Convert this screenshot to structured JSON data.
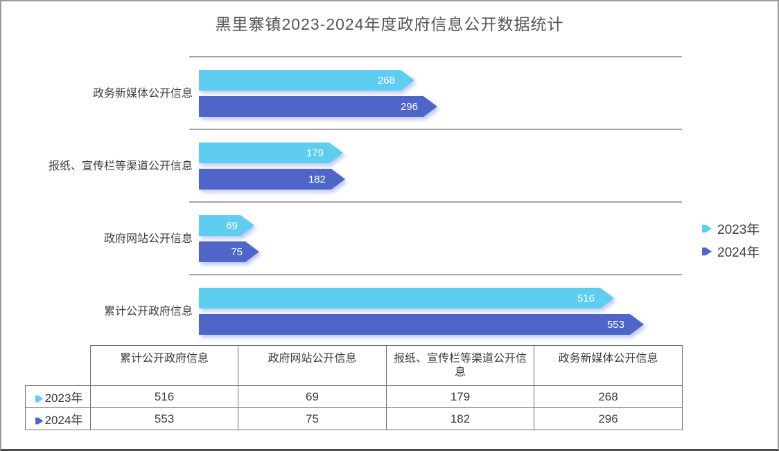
{
  "title": "黑里寨镇2023-2024年度政府信息公开数据统计",
  "colors": {
    "series_2023": "#5FCDF0",
    "series_2024": "#4F66C8",
    "bar_label_text": "#ffffff",
    "gridline": "#a5a5a5",
    "table_border": "#6f6f6f",
    "title_text": "#565656"
  },
  "chart_data": {
    "type": "bar",
    "orientation": "horizontal",
    "categories_top_to_bottom": [
      "政务新媒体公开信息",
      "报纸、宣传栏等渠道公开信息",
      "政府网站公开信息",
      "累计公开政府信息"
    ],
    "series": [
      {
        "name": "2023年",
        "color": "#5FCDF0",
        "values": [
          268,
          179,
          69,
          516
        ]
      },
      {
        "name": "2024年",
        "color": "#4F66C8",
        "values": [
          296,
          182,
          75,
          553
        ]
      }
    ],
    "xlim": [
      0,
      600
    ],
    "grid": "category-separators",
    "legend_position": "right",
    "bar_labels": "inside-end"
  },
  "legend": {
    "items": [
      {
        "label": "2023年",
        "color": "#5FCDF0",
        "marker": "arrow-right-icon"
      },
      {
        "label": "2024年",
        "color": "#4F66C8",
        "marker": "arrow-right-icon"
      }
    ]
  },
  "table": {
    "columns": [
      "累计公开政府信息",
      "政府网站公开信息",
      "报纸、宣传栏等渠道公开信息",
      "政务新媒体公开信息"
    ],
    "rows": [
      {
        "label": "2023年",
        "marker_color": "#5FCDF0",
        "values": [
          "516",
          "69",
          "179",
          "268"
        ]
      },
      {
        "label": "2024年",
        "marker_color": "#4F66C8",
        "values": [
          "553",
          "75",
          "182",
          "296"
        ]
      }
    ]
  }
}
